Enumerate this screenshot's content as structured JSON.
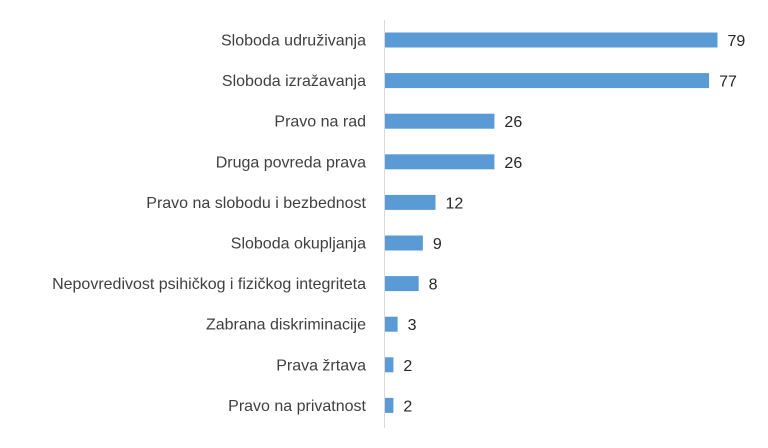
{
  "chart_data": {
    "type": "bar",
    "orientation": "horizontal",
    "title": "",
    "xlabel": "",
    "ylabel": "",
    "categories": [
      "Sloboda udruživanja",
      "Sloboda izražavanja",
      "Pravo na rad",
      "Druga povreda prava",
      "Pravo na slobodu i bezbednost",
      "Sloboda okupljanja",
      "Nepovredivost psihičkog i fizičkog integriteta",
      "Zabrana diskriminacije",
      "Prava žrtava",
      "Pravo na privatnost"
    ],
    "values": [
      79,
      77,
      26,
      26,
      12,
      9,
      8,
      3,
      2,
      2
    ],
    "data_labels": [
      "79",
      "77",
      "26",
      "26",
      "12",
      "9",
      "8",
      "3",
      "2",
      "2"
    ],
    "xlim": [
      0,
      80
    ],
    "grid": false,
    "legend": "none",
    "bar_color": "#5b9bd5"
  }
}
